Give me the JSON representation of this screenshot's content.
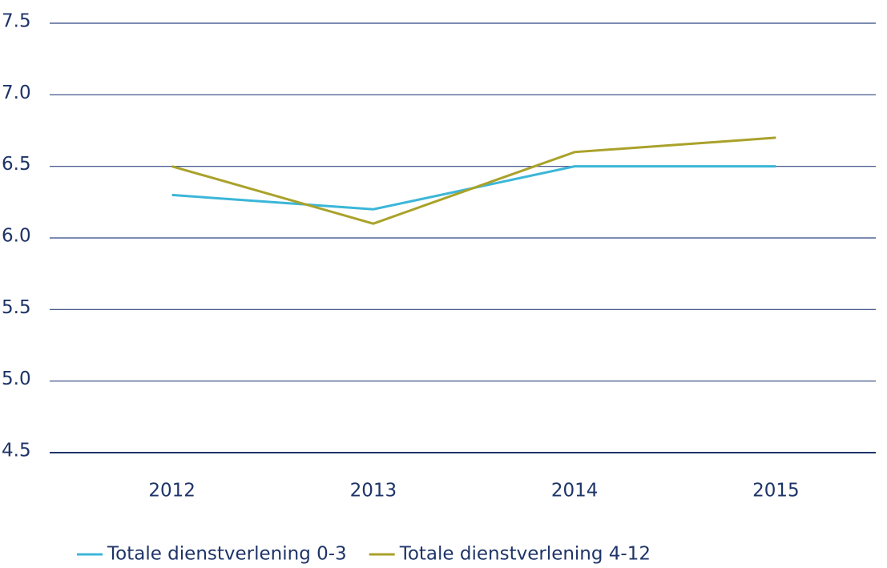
{
  "chart_data": {
    "type": "line",
    "categories": [
      "2012",
      "2013",
      "2014",
      "2015"
    ],
    "series": [
      {
        "name": "Totale dienstverlening 0-3",
        "color": "#3cb6d8",
        "values": [
          6.3,
          6.2,
          6.5,
          6.5
        ]
      },
      {
        "name": "Totale dienstverlening 4-12",
        "color": "#a9a22a",
        "values": [
          6.5,
          6.1,
          6.6,
          6.7
        ]
      }
    ],
    "ylim": [
      4.5,
      7.5
    ],
    "yticks": [
      4.5,
      {
        "value": 5,
        "label": "5.0"
      },
      5.5,
      {
        "value": 6,
        "label": "6.0"
      },
      6.5,
      {
        "value": 7,
        "label": "7.0"
      },
      7.5
    ],
    "grid": true,
    "legend": "bottom"
  }
}
